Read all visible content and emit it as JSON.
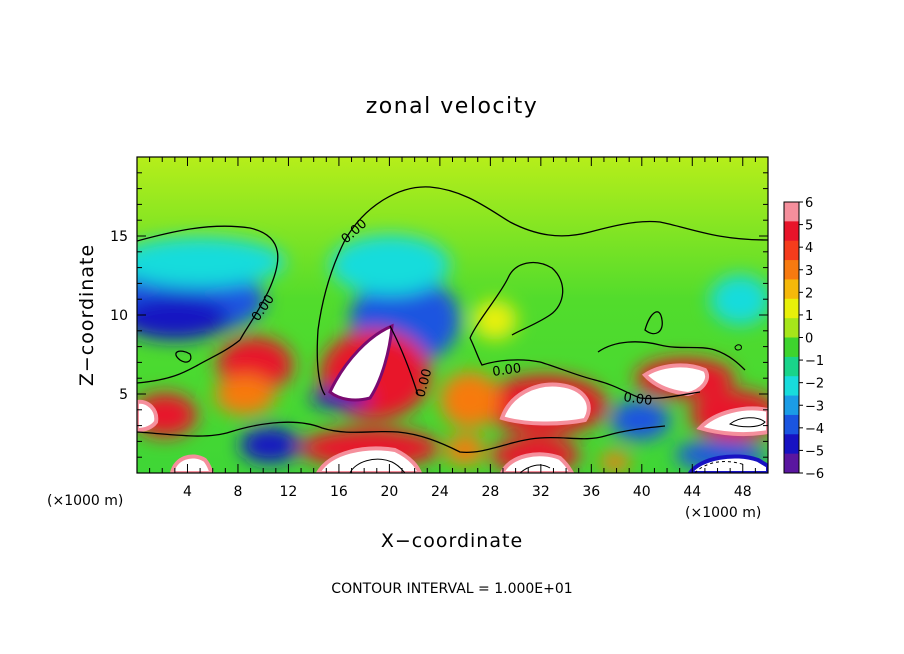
{
  "chart_data": {
    "type": "heatmap",
    "title": "zonal velocity",
    "xlabel": "X−coordinate",
    "ylabel": "Z−coordinate",
    "x_unit_left": "(×1000 m)",
    "x_unit_right": "(×1000 m)",
    "xlim": [
      0,
      50
    ],
    "ylim": [
      0,
      20
    ],
    "x_ticks": [
      4,
      8,
      12,
      16,
      20,
      24,
      28,
      32,
      36,
      40,
      44,
      48
    ],
    "x_tick_labels": [
      "4",
      "8",
      "12",
      "16",
      "20",
      "24",
      "28",
      "32",
      "36",
      "40",
      "44",
      "48"
    ],
    "y_ticks": [
      5,
      10,
      15
    ],
    "y_tick_labels": [
      "5",
      "10",
      "15"
    ],
    "colorbar": {
      "min": -6,
      "max": 6,
      "tick_labels": [
        "6",
        "5",
        "4",
        "3",
        "2",
        "1",
        "0",
        "−1",
        "−2",
        "−3",
        "−4",
        "−5",
        "−6"
      ],
      "colors": [
        "#f58f9c",
        "#e8142a",
        "#f53c1c",
        "#f77a10",
        "#f5b80a",
        "#e8f00a",
        "#a6e61a",
        "#3ed42e",
        "#19d48a",
        "#18dcdc",
        "#1b9ce6",
        "#1a55e0",
        "#1712c2",
        "#5a16a0"
      ]
    },
    "contour_label": "0.00",
    "contour_interval_text": "CONTOUR INTERVAL = 1.000E+01",
    "features": [
      {
        "kind": "positive-core",
        "x": 19.5,
        "z": 6.0
      },
      {
        "kind": "positive-core",
        "x": 31.5,
        "z": 4.5
      },
      {
        "kind": "positive-core",
        "x": 43.0,
        "z": 5.8
      },
      {
        "kind": "negative-core",
        "x": 3.0,
        "z": 9.5
      },
      {
        "kind": "negative-core",
        "x": 24.0,
        "z": 10.0
      },
      {
        "kind": "positive-core",
        "x": 10.0,
        "z": 7.0
      }
    ]
  }
}
